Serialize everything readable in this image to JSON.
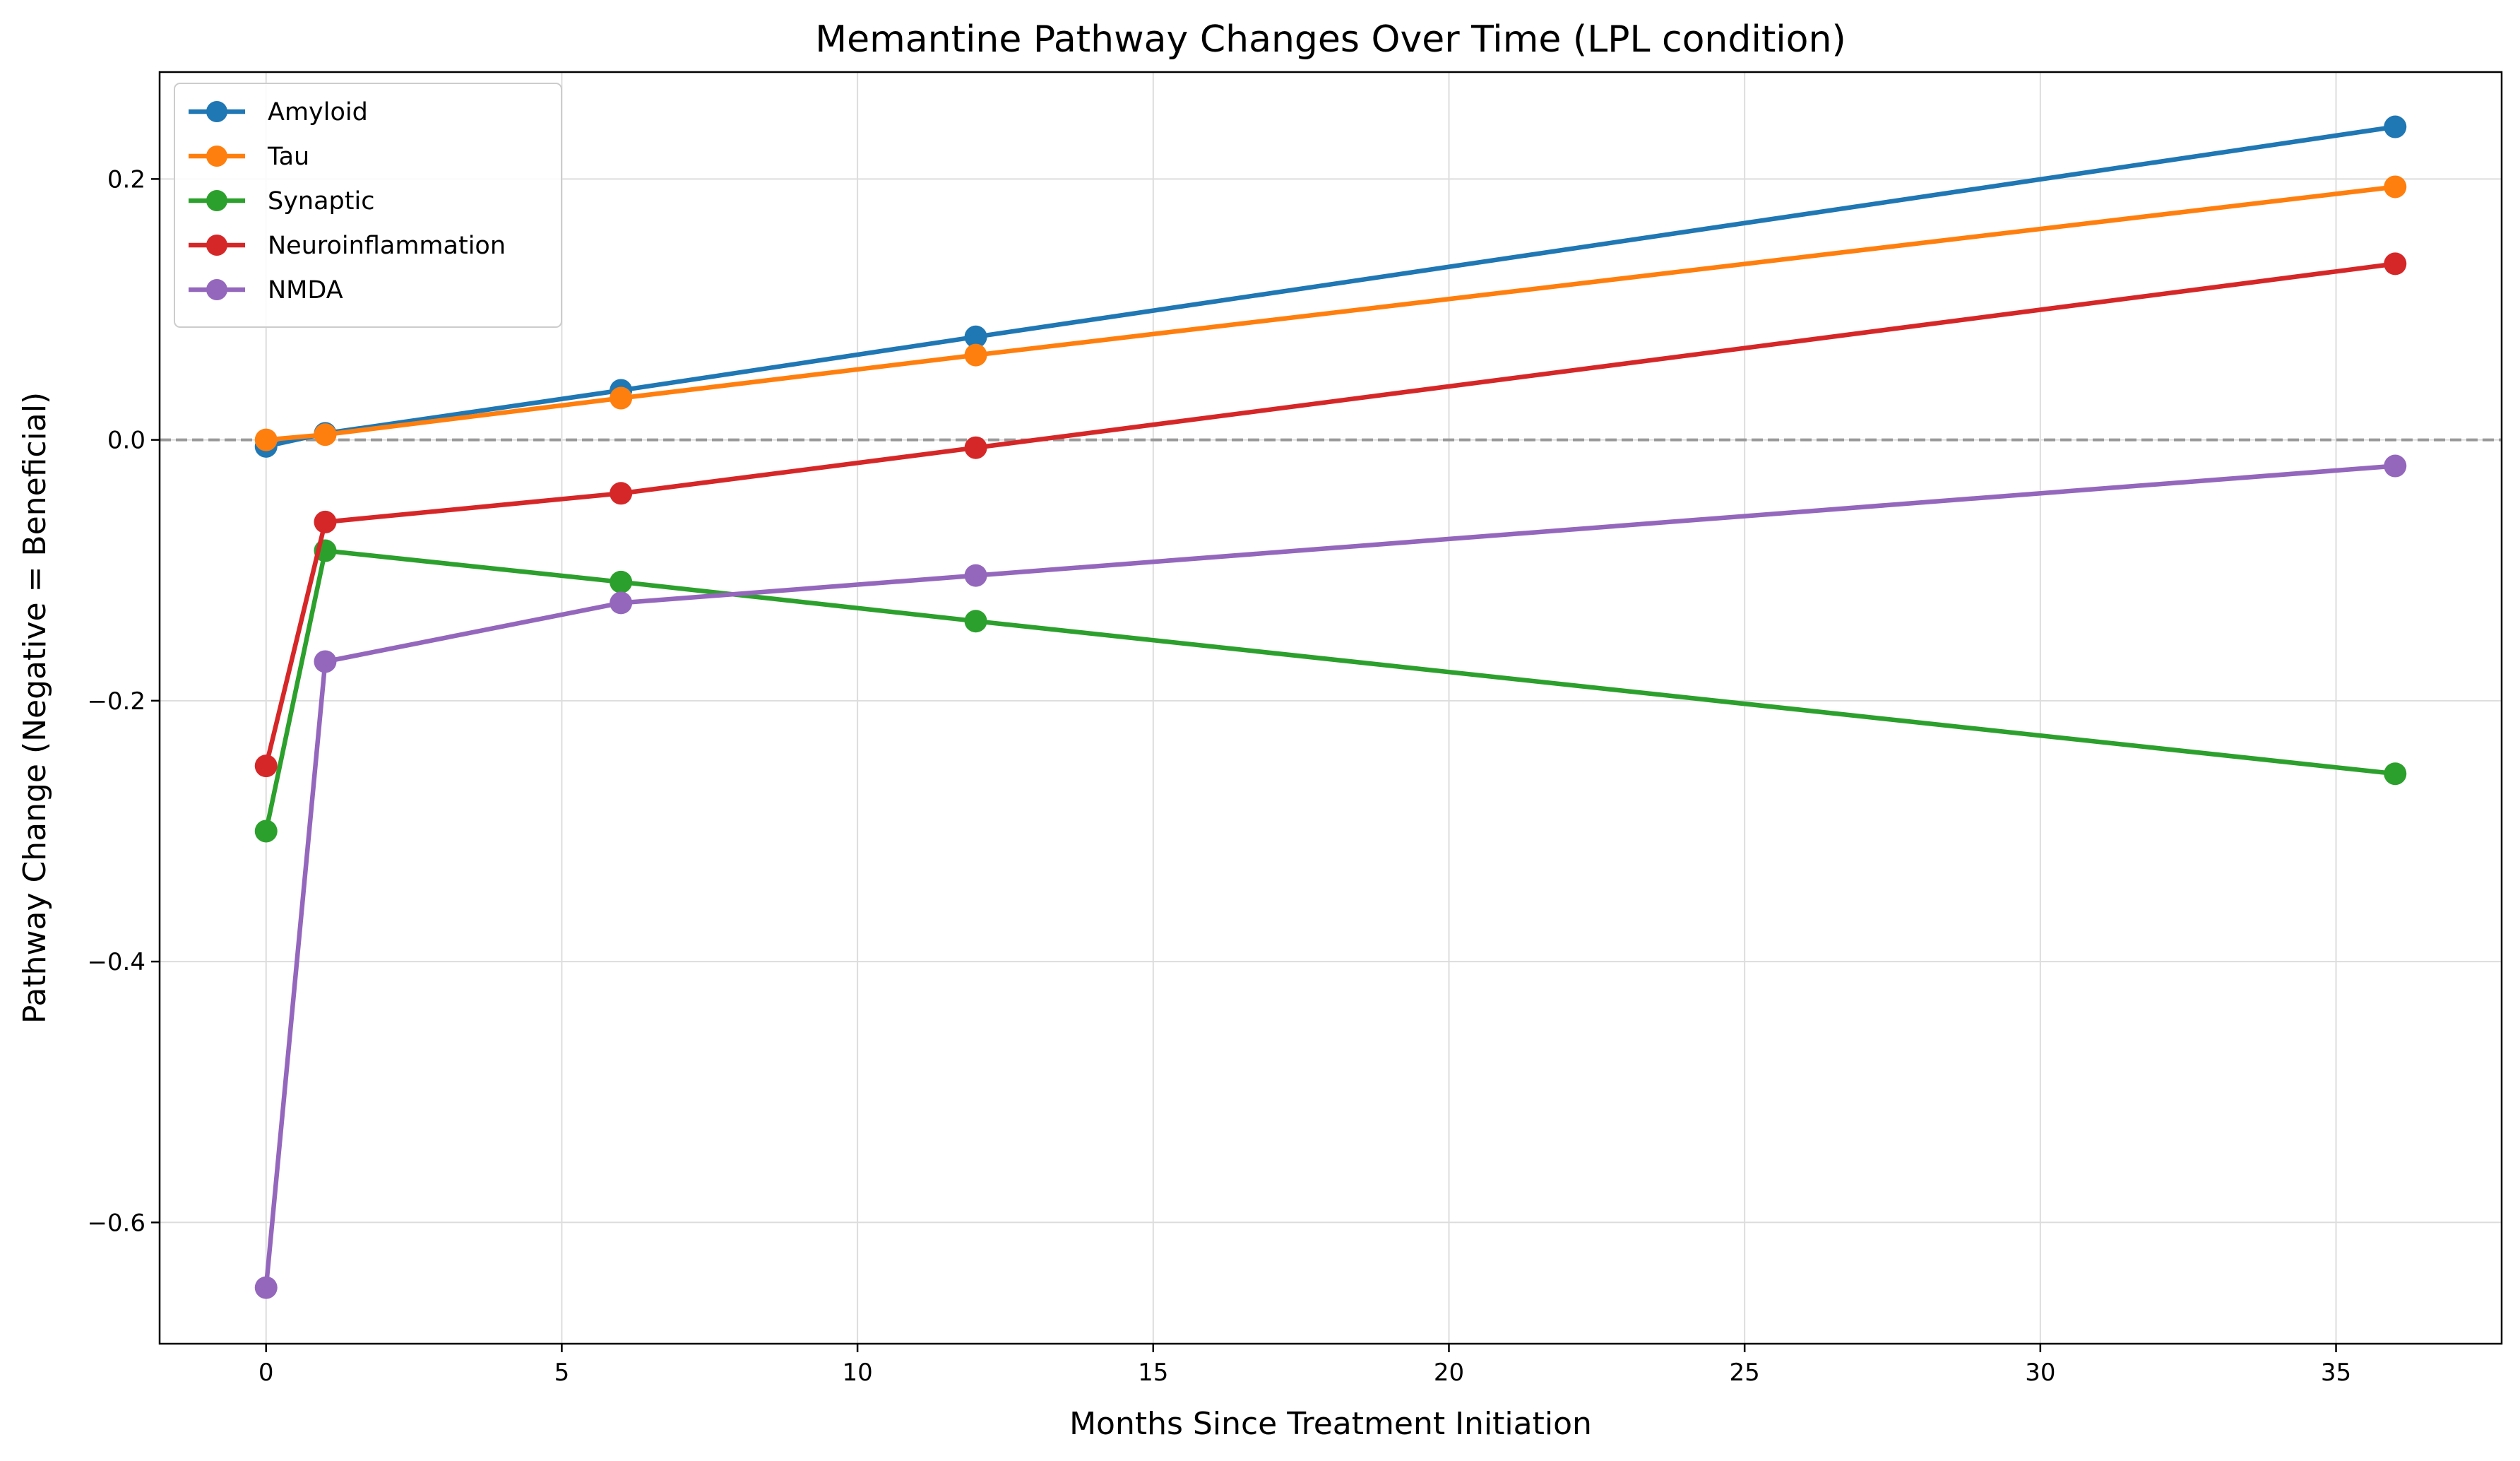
{
  "chart_data": {
    "type": "line",
    "title": "Memantine Pathway Changes Over Time (LPL condition)",
    "xlabel": "Months Since Treatment Initiation",
    "ylabel": "Pathway Change (Negative = Beneficial)",
    "x": [
      0,
      1,
      6,
      12,
      36
    ],
    "xlim": [
      -1.8,
      37.8
    ],
    "ylim": [
      -0.693,
      0.282
    ],
    "xticks": [
      0,
      5,
      10,
      15,
      20,
      25,
      30,
      35
    ],
    "xtick_labels": [
      "0",
      "5",
      "10",
      "15",
      "20",
      "25",
      "30",
      "35"
    ],
    "yticks": [
      -0.6,
      -0.4,
      -0.2,
      0.0,
      0.2
    ],
    "ytick_labels": [
      "−0.6",
      "−0.4",
      "−0.2",
      "0.0",
      "0.2"
    ],
    "grid": true,
    "reference_line": {
      "y": 0.0,
      "style": "dashed",
      "color": "#999999"
    },
    "legend_position": "upper-left",
    "series": [
      {
        "name": "Amyloid",
        "color": "#1f77b4",
        "values": [
          -0.005,
          0.005,
          0.038,
          0.079,
          0.24
        ]
      },
      {
        "name": "Tau",
        "color": "#ff7f0e",
        "values": [
          0.0,
          0.004,
          0.032,
          0.065,
          0.194
        ]
      },
      {
        "name": "Synaptic",
        "color": "#2ca02c",
        "values": [
          -0.3,
          -0.085,
          -0.109,
          -0.139,
          -0.256
        ]
      },
      {
        "name": "Neuroinflammation",
        "color": "#d62728",
        "values": [
          -0.25,
          -0.063,
          -0.041,
          -0.006,
          0.135
        ]
      },
      {
        "name": "NMDA",
        "color": "#9467bd",
        "values": [
          -0.65,
          -0.17,
          -0.125,
          -0.104,
          -0.02
        ]
      }
    ]
  }
}
